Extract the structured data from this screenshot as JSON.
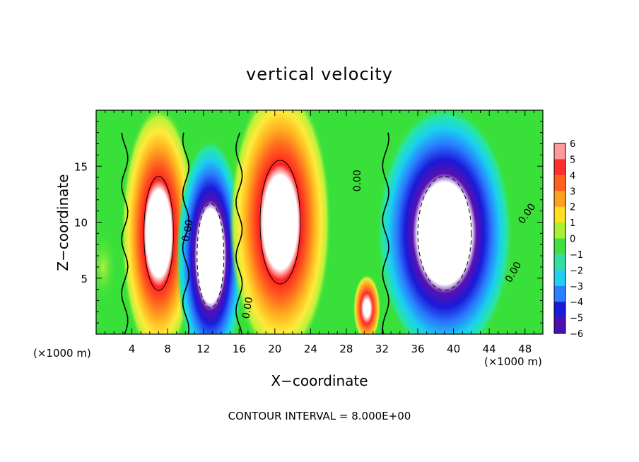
{
  "chart_data": {
    "type": "heatmap",
    "title": "vertical velocity",
    "xlabel": "X−coordinate",
    "ylabel": "Z−coordinate",
    "x_unit_left": "(×1000 m)",
    "x_unit_right": "(×1000 m)",
    "footer": "CONTOUR INTERVAL = 8.000E+00",
    "xlim": [
      0,
      50
    ],
    "ylim": [
      0,
      20
    ],
    "x_ticks": [
      4,
      8,
      12,
      16,
      20,
      24,
      28,
      32,
      36,
      40,
      44,
      48
    ],
    "x_tick_labels": [
      "4",
      "8",
      "12",
      "16",
      "20",
      "24",
      "28",
      "32",
      "36",
      "40",
      "44",
      "48"
    ],
    "y_ticks": [
      5,
      10,
      15
    ],
    "y_tick_labels": [
      "5",
      "10",
      "15"
    ],
    "colorbar": {
      "min": -6,
      "max": 6,
      "tick_values": [
        6,
        5,
        4,
        3,
        2,
        1,
        0,
        -1,
        -2,
        -3,
        -4,
        -5,
        -6
      ],
      "tick_labels": [
        "6",
        "5",
        "4",
        "3",
        "2",
        "1",
        "0",
        "−1",
        "−2",
        "−3",
        "−4",
        "−5",
        "−6"
      ]
    },
    "contour_labels": [
      {
        "text": "0.00",
        "x": 10.6,
        "z": 9.2,
        "angle": -80
      },
      {
        "text": "0.00",
        "x": 29.6,
        "z": 13.7,
        "angle": -90
      },
      {
        "text": "0.00",
        "x": 17.3,
        "z": 2.3,
        "angle": -80
      },
      {
        "text": "0.00",
        "x": 48.5,
        "z": 10.6,
        "angle": -55
      },
      {
        "text": "0.00",
        "x": 47.0,
        "z": 5.4,
        "angle": -60
      }
    ],
    "cells": [
      {
        "x": 0.8,
        "z": 6.0,
        "w": 0.0,
        "sx": 1.2,
        "sz": 2.5
      },
      {
        "x": 7.0,
        "z": 9.0,
        "w": 12.0,
        "sx": 2.2,
        "sz": 6.0
      },
      {
        "x": 12.8,
        "z": 7.0,
        "w": -11.0,
        "sx": 2.0,
        "sz": 5.5
      },
      {
        "x": 20.6,
        "z": 10.0,
        "w": 14.0,
        "sx": 3.0,
        "sz": 6.5
      },
      {
        "x": 30.3,
        "z": 2.3,
        "w": 9.0,
        "sx": 0.8,
        "sz": 1.6
      },
      {
        "x": 39.0,
        "z": 9.0,
        "w": -14.0,
        "sx": 4.0,
        "sz": 6.0
      }
    ]
  }
}
